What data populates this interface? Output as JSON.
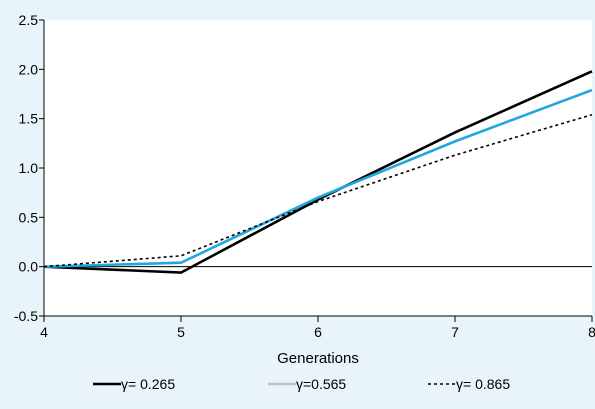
{
  "chart_data": {
    "type": "line",
    "title": "",
    "xlabel": "Generations",
    "ylabel": "",
    "x": [
      4,
      5,
      6,
      7,
      8
    ],
    "xlim": [
      4,
      8
    ],
    "ylim": [
      -0.5,
      2.5
    ],
    "x_ticks": [
      "4",
      "5",
      "6",
      "7",
      "8"
    ],
    "y_ticks": [
      "2.5",
      "2.0",
      "1.5",
      "1.0",
      "0.5",
      "0.0",
      "-0.5"
    ],
    "grid": false,
    "zero_line": true,
    "legend_position": "bottom",
    "series": [
      {
        "name": "γ= 0.265",
        "values": [
          0.0,
          -0.06,
          0.68,
          1.36,
          1.98
        ],
        "color": "#000000",
        "dash": "solid"
      },
      {
        "name": "γ=0.565",
        "values": [
          0.0,
          0.04,
          0.7,
          1.27,
          1.79
        ],
        "color": "#1fa7df",
        "dash": "solid",
        "legend_color": "#c0c0c0"
      },
      {
        "name": "γ= 0.865",
        "values": [
          0.0,
          0.11,
          0.66,
          1.13,
          1.54
        ],
        "color": "#000000",
        "dash": "dotted"
      }
    ]
  }
}
